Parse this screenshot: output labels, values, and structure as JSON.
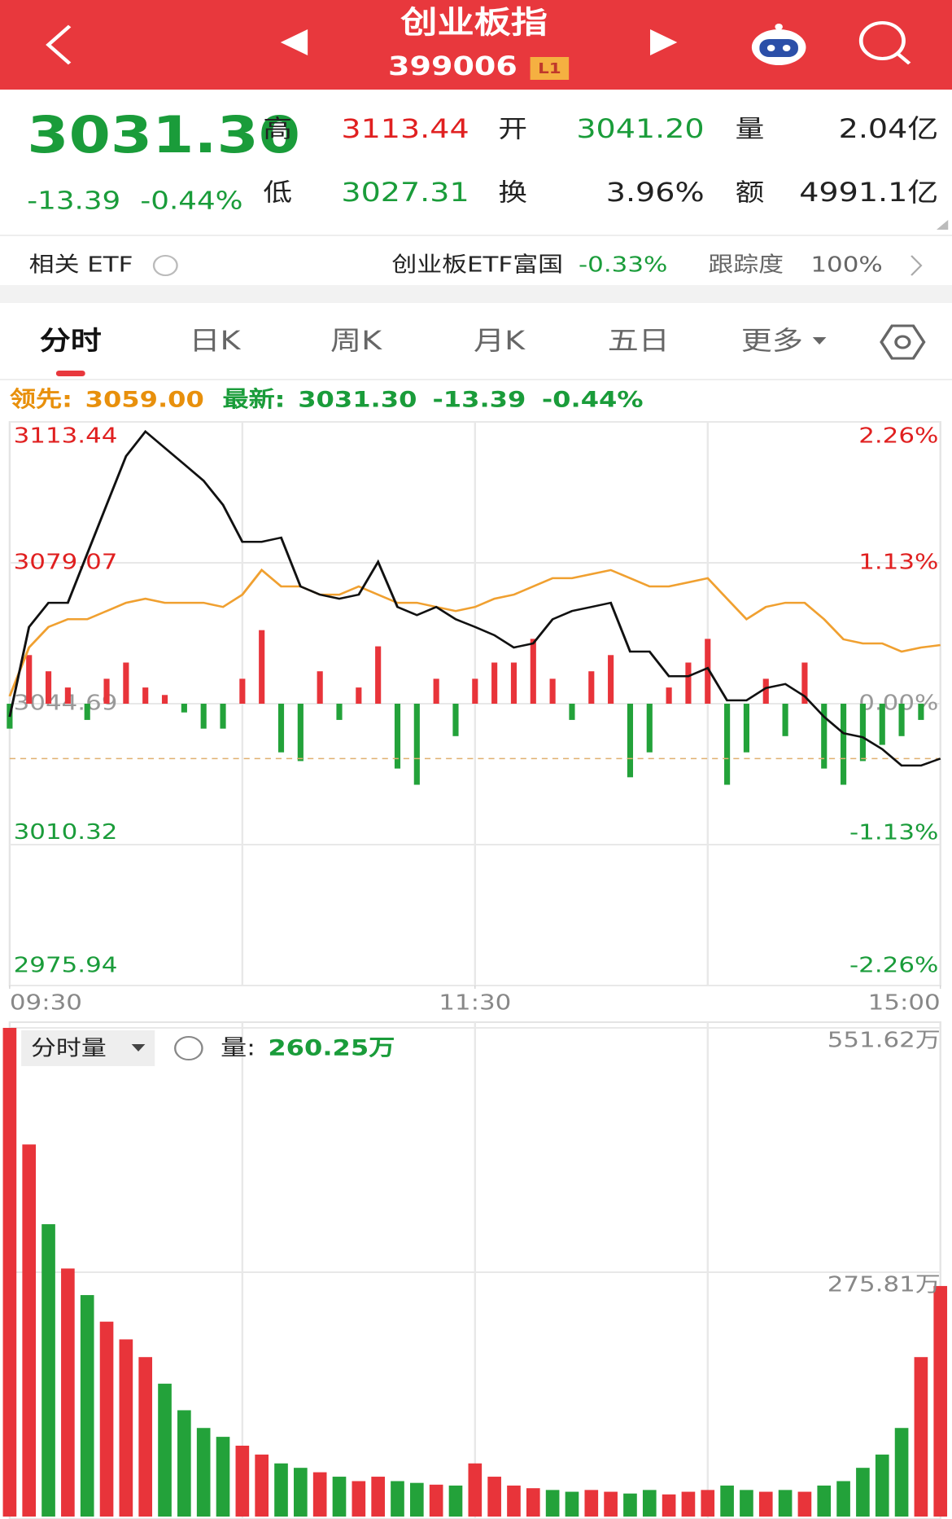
{
  "header": {
    "title": "创业板指",
    "code": "399006",
    "badge": "L1"
  },
  "quote": {
    "price": "3031.30",
    "change": "-13.39",
    "change_pct": "-0.44%",
    "stats": [
      {
        "label": "高",
        "value": "3113.44"
      },
      {
        "label": "开",
        "value": "3041.20"
      },
      {
        "label": "量",
        "value": "2.04亿"
      },
      {
        "label": "低",
        "value": "3027.31"
      },
      {
        "label": "换",
        "value": "3.96%"
      },
      {
        "label": "额",
        "value": "4991.1亿"
      }
    ]
  },
  "etf": {
    "label": "相关 ETF",
    "name": "创业板ETF富国",
    "change": "-0.33%",
    "tracking_label": "跟踪度",
    "tracking": "100%"
  },
  "tabs": [
    "分时",
    "日K",
    "周K",
    "月K",
    "五日",
    "更多"
  ],
  "chart_data": [
    {
      "type": "line",
      "lead_label": "领先:",
      "lead": "3059.00",
      "latest_label": "最新:",
      "latest": "3031.30",
      "latest_change": "-13.39",
      "latest_change_pct": "-0.44%",
      "x": [
        0,
        5,
        10,
        15,
        20,
        25,
        30,
        35,
        40,
        45,
        50,
        55,
        60,
        65,
        70,
        75,
        80,
        85,
        90,
        95,
        100,
        105,
        110,
        115,
        120,
        125,
        130,
        135,
        140,
        145,
        150,
        155,
        160,
        165,
        170,
        175,
        180,
        185,
        190,
        195,
        200,
        205,
        210,
        215,
        220,
        225,
        230,
        235,
        240
      ],
      "xlim": [
        0,
        240
      ],
      "xticks": [
        {
          "value": 0,
          "label": "09:30"
        },
        {
          "value": 120,
          "label": "11:30"
        },
        {
          "value": 240,
          "label": "15:00"
        }
      ],
      "ylim": [
        2975.94,
        3113.44
      ],
      "yticks": [
        2975.94,
        3010.32,
        3044.69,
        3079.07,
        3113.44
      ],
      "y2lim": [
        -2.26,
        2.26
      ],
      "y2ticks": [
        {
          "value": -2.26,
          "label": "-2.26%"
        },
        {
          "value": -1.13,
          "label": "-1.13%"
        },
        {
          "value": 0,
          "label": "0.00%"
        },
        {
          "value": 1.13,
          "label": "1.13%"
        },
        {
          "value": 2.26,
          "label": "2.26%"
        }
      ],
      "grid": true,
      "series": [
        {
          "color": "#111111",
          "values": [
            3041.5,
            3063.4,
            3069.3,
            3069.3,
            3081.3,
            3093.2,
            3105.1,
            3111.1,
            3107.1,
            3103.1,
            3099.1,
            3093.2,
            3084.2,
            3084.2,
            3085.2,
            3073.3,
            3071.3,
            3070.3,
            3071.3,
            3079.3,
            3068.3,
            3066.3,
            3068.3,
            3065.3,
            3063.4,
            3061.4,
            3058.4,
            3059.4,
            3065.3,
            3067.3,
            3068.3,
            3069.3,
            3057.4,
            3057.4,
            3051.4,
            3051.4,
            3053.4,
            3045.5,
            3045.5,
            3048.5,
            3049.5,
            3046.5,
            3041.5,
            3037.5,
            3036.5,
            3033.6,
            3029.6,
            3029.6,
            3031.3
          ]
        },
        {
          "color": "#f0a030",
          "values": [
            3046.5,
            3058.4,
            3063.4,
            3065.3,
            3065.3,
            3067.3,
            3069.3,
            3070.3,
            3069.3,
            3069.3,
            3069.3,
            3068.3,
            3071.3,
            3077.3,
            3073.3,
            3073.3,
            3071.3,
            3071.3,
            3073.3,
            3071.3,
            3069.3,
            3069.3,
            3068.3,
            3067.3,
            3068.3,
            3070.3,
            3071.3,
            3073.3,
            3075.3,
            3075.3,
            3076.3,
            3077.3,
            3075.3,
            3073.3,
            3073.3,
            3074.3,
            3075.3,
            3070.3,
            3065.3,
            3068.3,
            3069.3,
            3069.3,
            3065.3,
            3060.4,
            3059.4,
            3059.4,
            3057.4,
            3058.4,
            3059.0
          ]
        },
        {
          "type": "bar",
          "axis": "y2",
          "up_color": "#e8343a",
          "down_color": "#23a23a",
          "x": [
            0,
            5,
            10,
            15,
            20,
            25,
            30,
            35,
            40,
            45,
            50,
            55,
            60,
            65,
            70,
            75,
            80,
            85,
            90,
            95,
            100,
            105,
            110,
            115,
            120,
            125,
            130,
            135,
            140,
            145,
            150,
            155,
            160,
            165,
            170,
            175,
            180,
            185,
            190,
            195,
            200,
            205,
            210,
            215,
            220,
            225,
            230,
            235
          ],
          "values": [
            -0.2,
            0.39,
            0.26,
            0.13,
            -0.13,
            0.2,
            0.33,
            0.13,
            0.07,
            -0.07,
            -0.2,
            -0.2,
            0.2,
            0.59,
            -0.39,
            -0.46,
            0.26,
            -0.13,
            0.13,
            0.46,
            -0.52,
            -0.65,
            0.2,
            -0.26,
            0.2,
            0.33,
            0.33,
            0.52,
            0.2,
            -0.13,
            0.26,
            0.39,
            -0.59,
            -0.39,
            0.13,
            0.33,
            0.52,
            -0.65,
            -0.39,
            0.2,
            -0.26,
            0.33,
            -0.52,
            -0.65,
            -0.46,
            -0.33,
            -0.26,
            -0.13
          ]
        }
      ]
    },
    {
      "type": "bar",
      "dropdown": "分时量",
      "label": "量:",
      "value_text": "260.25万",
      "x": [
        0,
        5,
        10,
        15,
        20,
        25,
        30,
        35,
        40,
        45,
        50,
        55,
        60,
        65,
        70,
        75,
        80,
        85,
        90,
        95,
        100,
        105,
        110,
        115,
        120,
        125,
        130,
        135,
        140,
        145,
        150,
        155,
        160,
        165,
        170,
        175,
        180,
        185,
        190,
        195,
        200,
        205,
        210,
        215,
        220,
        225,
        230,
        235,
        240
      ],
      "values": [
        551.62,
        420,
        330,
        280,
        250,
        220,
        200,
        180,
        150,
        120,
        100,
        90,
        80,
        70,
        60,
        55,
        50,
        45,
        40,
        45,
        40,
        38,
        36,
        35,
        60,
        45,
        35,
        32,
        30,
        28,
        30,
        28,
        26,
        30,
        25,
        28,
        30,
        35,
        30,
        28,
        30,
        28,
        35,
        40,
        55,
        70,
        100,
        180,
        260.25
      ],
      "colors": [
        "#e8343a",
        "#e8343a",
        "#23a23a",
        "#e8343a",
        "#23a23a",
        "#e8343a",
        "#e8343a",
        "#e8343a",
        "#23a23a",
        "#23a23a",
        "#23a23a",
        "#23a23a",
        "#e8343a",
        "#e8343a",
        "#23a23a",
        "#23a23a",
        "#e8343a",
        "#23a23a",
        "#e8343a",
        "#e8343a",
        "#23a23a",
        "#23a23a",
        "#e8343a",
        "#23a23a",
        "#e8343a",
        "#e8343a",
        "#e8343a",
        "#e8343a",
        "#23a23a",
        "#23a23a",
        "#e8343a",
        "#e8343a",
        "#23a23a",
        "#23a23a",
        "#e8343a",
        "#e8343a",
        "#e8343a",
        "#23a23a",
        "#23a23a",
        "#e8343a",
        "#23a23a",
        "#e8343a",
        "#23a23a",
        "#23a23a",
        "#23a23a",
        "#23a23a",
        "#23a23a",
        "#e8343a",
        "#e8343a"
      ],
      "xlim": [
        0,
        240
      ],
      "ylim": [
        0,
        551.62
      ],
      "yticks": [
        {
          "value": 275.81,
          "label": "275.81万"
        },
        {
          "value": 551.62,
          "label": "551.62万"
        }
      ]
    }
  ]
}
